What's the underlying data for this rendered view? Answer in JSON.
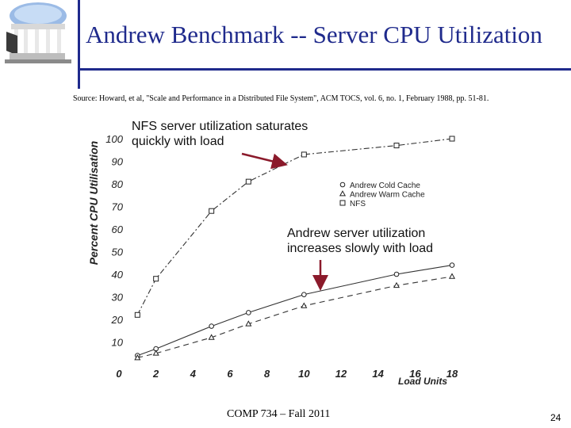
{
  "slide": {
    "title": "Andrew Benchmark -- Server CPU Utilization",
    "source": "Source: Howard, et al, \"Scale and Performance in a Distributed File System\", ACM TOCS, vol. 6, no. 1, February 1988, pp. 51-81.",
    "annotation_nfs": "NFS server utilization saturates quickly with load",
    "annotation_andrew": "Andrew server utilization increases slowly with load",
    "footer": "COMP 734 – Fall 2011",
    "page_number": "24",
    "accent_color": "#1f2a8c",
    "logo_icon": "old-well-logo",
    "arrow_color": "#8b1a2b"
  },
  "chart_data": {
    "type": "line",
    "xlabel": "Load Units",
    "ylabel": "Percent CPU Utilisation",
    "xlim": [
      0,
      18
    ],
    "ylim": [
      0,
      100
    ],
    "x_ticks": [
      0,
      2,
      4,
      6,
      8,
      10,
      12,
      14,
      16,
      18
    ],
    "y_ticks": [
      10,
      20,
      30,
      40,
      50,
      60,
      70,
      80,
      90,
      100
    ],
    "grid": false,
    "legend_position": "right",
    "series": [
      {
        "name": "Andrew Cold Cache",
        "marker": "circle",
        "line": "solid",
        "points": [
          [
            1,
            4
          ],
          [
            2,
            7
          ],
          [
            5,
            17
          ],
          [
            7,
            23
          ],
          [
            10,
            31
          ],
          [
            15,
            40
          ],
          [
            18,
            44
          ]
        ]
      },
      {
        "name": "Andrew Warm Cache",
        "marker": "triangle",
        "line": "dashed",
        "points": [
          [
            1,
            3
          ],
          [
            2,
            5
          ],
          [
            5,
            12
          ],
          [
            7,
            18
          ],
          [
            10,
            26
          ],
          [
            15,
            35
          ],
          [
            18,
            39
          ]
        ]
      },
      {
        "name": "NFS",
        "marker": "square",
        "line": "dashdot",
        "points": [
          [
            1,
            22
          ],
          [
            2,
            38
          ],
          [
            5,
            68
          ],
          [
            7,
            81
          ],
          [
            10,
            93
          ],
          [
            15,
            97
          ],
          [
            18,
            100
          ]
        ]
      }
    ]
  }
}
